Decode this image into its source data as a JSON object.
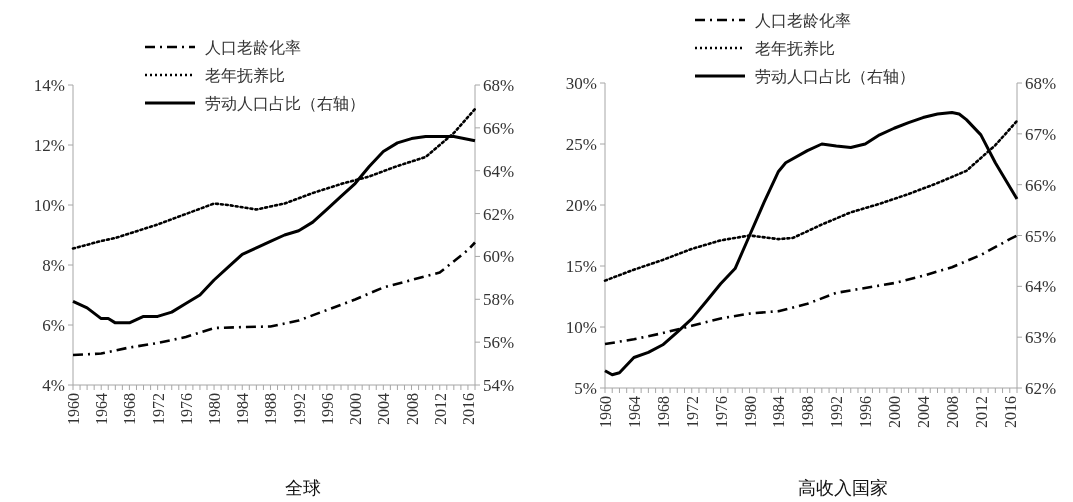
{
  "chart_data": [
    {
      "type": "line",
      "title": "全球",
      "legend": "top",
      "grid": false,
      "marker": "none",
      "xlim": [
        1960,
        2017
      ],
      "xticks": [
        {
          "value": 1960,
          "label": "1960"
        },
        {
          "value": 1961,
          "label": null
        },
        {
          "value": 1962,
          "label": null
        },
        {
          "value": 1963,
          "label": null
        },
        {
          "value": 1964,
          "label": "1964"
        },
        {
          "value": 1965,
          "label": null
        },
        {
          "value": 1966,
          "label": null
        },
        {
          "value": 1967,
          "label": null
        },
        {
          "value": 1968,
          "label": "1968"
        },
        {
          "value": 1969,
          "label": null
        },
        {
          "value": 1970,
          "label": null
        },
        {
          "value": 1971,
          "label": null
        },
        {
          "value": 1972,
          "label": "1972"
        },
        {
          "value": 1973,
          "label": null
        },
        {
          "value": 1974,
          "label": null
        },
        {
          "value": 1975,
          "label": null
        },
        {
          "value": 1976,
          "label": "1976"
        },
        {
          "value": 1977,
          "label": null
        },
        {
          "value": 1978,
          "label": null
        },
        {
          "value": 1979,
          "label": null
        },
        {
          "value": 1980,
          "label": "1980"
        },
        {
          "value": 1981,
          "label": null
        },
        {
          "value": 1982,
          "label": null
        },
        {
          "value": 1983,
          "label": null
        },
        {
          "value": 1984,
          "label": "1984"
        },
        {
          "value": 1985,
          "label": null
        },
        {
          "value": 1986,
          "label": null
        },
        {
          "value": 1987,
          "label": null
        },
        {
          "value": 1988,
          "label": "1988"
        },
        {
          "value": 1989,
          "label": null
        },
        {
          "value": 1990,
          "label": null
        },
        {
          "value": 1991,
          "label": null
        },
        {
          "value": 1992,
          "label": "1992"
        },
        {
          "value": 1993,
          "label": null
        },
        {
          "value": 1994,
          "label": null
        },
        {
          "value": 1995,
          "label": null
        },
        {
          "value": 1996,
          "label": "1996"
        },
        {
          "value": 1997,
          "label": null
        },
        {
          "value": 1998,
          "label": null
        },
        {
          "value": 1999,
          "label": null
        },
        {
          "value": 2000,
          "label": "2000"
        },
        {
          "value": 2001,
          "label": null
        },
        {
          "value": 2002,
          "label": null
        },
        {
          "value": 2003,
          "label": null
        },
        {
          "value": 2004,
          "label": "2004"
        },
        {
          "value": 2005,
          "label": null
        },
        {
          "value": 2006,
          "label": null
        },
        {
          "value": 2007,
          "label": null
        },
        {
          "value": 2008,
          "label": "2008"
        },
        {
          "value": 2009,
          "label": null
        },
        {
          "value": 2010,
          "label": null
        },
        {
          "value": 2011,
          "label": null
        },
        {
          "value": 2012,
          "label": "2012"
        },
        {
          "value": 2013,
          "label": null
        },
        {
          "value": 2014,
          "label": null
        },
        {
          "value": 2015,
          "label": null
        },
        {
          "value": 2016,
          "label": "2016"
        },
        {
          "value": 2017,
          "label": null
        }
      ],
      "ylim": [
        4,
        14
      ],
      "yticks": [
        {
          "value": 4,
          "label": "4%"
        },
        {
          "value": 6,
          "label": "6%"
        },
        {
          "value": 8,
          "label": "8%"
        },
        {
          "value": 10,
          "label": "10%"
        },
        {
          "value": 12,
          "label": "12%"
        },
        {
          "value": 14,
          "label": "14%"
        }
      ],
      "y2lim": [
        54,
        68
      ],
      "y2ticks": [
        {
          "value": 54,
          "label": "54%"
        },
        {
          "value": 56,
          "label": "56%"
        },
        {
          "value": 58,
          "label": "58%"
        },
        {
          "value": 60,
          "label": "60%"
        },
        {
          "value": 62,
          "label": "62%"
        },
        {
          "value": 64,
          "label": "64%"
        },
        {
          "value": 66,
          "label": "66%"
        },
        {
          "value": 68,
          "label": "68%"
        }
      ],
      "series": [
        {
          "name": "人口老龄化率",
          "color": "#000000",
          "line_style": "dashdot",
          "x": [
            1960,
            1964,
            1968,
            1972,
            1976,
            1980,
            1984,
            1988,
            1992,
            1996,
            2000,
            2004,
            2008,
            2012,
            2016,
            2017
          ],
          "values": [
            5.0,
            5.05,
            5.25,
            5.4,
            5.6,
            5.9,
            5.93,
            5.95,
            6.15,
            6.5,
            6.85,
            7.25,
            7.5,
            7.75,
            8.5,
            8.75
          ]
        },
        {
          "name": "老年抚养比",
          "color": "#000000",
          "line_style": "dotted",
          "x": [
            1960,
            1964,
            1966,
            1972,
            1976,
            1980,
            1982,
            1986,
            1990,
            1994,
            1998,
            2002,
            2006,
            2010,
            2014,
            2017
          ],
          "values": [
            8.55,
            8.8,
            8.9,
            9.35,
            9.7,
            10.05,
            10.0,
            9.85,
            10.05,
            10.4,
            10.7,
            10.95,
            11.3,
            11.6,
            12.4,
            13.2
          ]
        },
        {
          "name": "劳动人口占比（右轴）",
          "color": "#000000",
          "line_style": "solid",
          "axis": "y2",
          "x": [
            1960,
            1962,
            1964,
            1965,
            1966,
            1968,
            1970,
            1972,
            1974,
            1976,
            1978,
            1980,
            1982,
            1984,
            1986,
            1988,
            1990,
            1992,
            1994,
            1996,
            1998,
            2000,
            2002,
            2004,
            2006,
            2008,
            2010,
            2012,
            2014,
            2017
          ],
          "values": [
            57.9,
            57.6,
            57.1,
            57.1,
            56.9,
            56.9,
            57.2,
            57.2,
            57.4,
            57.8,
            58.2,
            58.9,
            59.5,
            60.1,
            60.4,
            60.7,
            61.0,
            61.2,
            61.6,
            62.2,
            62.8,
            63.4,
            64.2,
            64.9,
            65.3,
            65.5,
            65.6,
            65.6,
            65.6,
            65.4
          ]
        }
      ]
    },
    {
      "type": "line",
      "title": "高收入国家",
      "legend": "top",
      "grid": false,
      "marker": "none",
      "xlim": [
        1960,
        2017
      ],
      "xticks": [
        {
          "value": 1960,
          "label": "1960"
        },
        {
          "value": 1961,
          "label": null
        },
        {
          "value": 1962,
          "label": null
        },
        {
          "value": 1963,
          "label": null
        },
        {
          "value": 1964,
          "label": "1964"
        },
        {
          "value": 1965,
          "label": null
        },
        {
          "value": 1966,
          "label": null
        },
        {
          "value": 1967,
          "label": null
        },
        {
          "value": 1968,
          "label": "1968"
        },
        {
          "value": 1969,
          "label": null
        },
        {
          "value": 1970,
          "label": null
        },
        {
          "value": 1971,
          "label": null
        },
        {
          "value": 1972,
          "label": "1972"
        },
        {
          "value": 1973,
          "label": null
        },
        {
          "value": 1974,
          "label": null
        },
        {
          "value": 1975,
          "label": null
        },
        {
          "value": 1976,
          "label": "1976"
        },
        {
          "value": 1977,
          "label": null
        },
        {
          "value": 1978,
          "label": null
        },
        {
          "value": 1979,
          "label": null
        },
        {
          "value": 1980,
          "label": "1980"
        },
        {
          "value": 1981,
          "label": null
        },
        {
          "value": 1982,
          "label": null
        },
        {
          "value": 1983,
          "label": null
        },
        {
          "value": 1984,
          "label": "1984"
        },
        {
          "value": 1985,
          "label": null
        },
        {
          "value": 1986,
          "label": null
        },
        {
          "value": 1987,
          "label": null
        },
        {
          "value": 1988,
          "label": "1988"
        },
        {
          "value": 1989,
          "label": null
        },
        {
          "value": 1990,
          "label": null
        },
        {
          "value": 1991,
          "label": null
        },
        {
          "value": 1992,
          "label": "1992"
        },
        {
          "value": 1993,
          "label": null
        },
        {
          "value": 1994,
          "label": null
        },
        {
          "value": 1995,
          "label": null
        },
        {
          "value": 1996,
          "label": "1996"
        },
        {
          "value": 1997,
          "label": null
        },
        {
          "value": 1998,
          "label": null
        },
        {
          "value": 1999,
          "label": null
        },
        {
          "value": 2000,
          "label": "2000"
        },
        {
          "value": 2001,
          "label": null
        },
        {
          "value": 2002,
          "label": null
        },
        {
          "value": 2003,
          "label": null
        },
        {
          "value": 2004,
          "label": "2004"
        },
        {
          "value": 2005,
          "label": null
        },
        {
          "value": 2006,
          "label": null
        },
        {
          "value": 2007,
          "label": null
        },
        {
          "value": 2008,
          "label": "2008"
        },
        {
          "value": 2009,
          "label": null
        },
        {
          "value": 2010,
          "label": null
        },
        {
          "value": 2011,
          "label": null
        },
        {
          "value": 2012,
          "label": "2012"
        },
        {
          "value": 2013,
          "label": null
        },
        {
          "value": 2014,
          "label": null
        },
        {
          "value": 2015,
          "label": null
        },
        {
          "value": 2016,
          "label": "2016"
        },
        {
          "value": 2017,
          "label": null
        }
      ],
      "ylim": [
        5,
        30
      ],
      "yticks": [
        {
          "value": 5,
          "label": "5%"
        },
        {
          "value": 10,
          "label": "10%"
        },
        {
          "value": 15,
          "label": "15%"
        },
        {
          "value": 20,
          "label": "20%"
        },
        {
          "value": 25,
          "label": "25%"
        },
        {
          "value": 30,
          "label": "30%"
        }
      ],
      "y2lim": [
        62,
        68
      ],
      "y2ticks": [
        {
          "value": 62,
          "label": "62%"
        },
        {
          "value": 63,
          "label": "63%"
        },
        {
          "value": 64,
          "label": "64%"
        },
        {
          "value": 65,
          "label": "65%"
        },
        {
          "value": 66,
          "label": "66%"
        },
        {
          "value": 67,
          "label": "67%"
        },
        {
          "value": 68,
          "label": "68%"
        }
      ],
      "series": [
        {
          "name": "人口老龄化率",
          "color": "#000000",
          "line_style": "dashdot",
          "x": [
            1960,
            1964,
            1968,
            1972,
            1976,
            1980,
            1984,
            1988,
            1992,
            1996,
            2000,
            2004,
            2008,
            2012,
            2016,
            2017
          ],
          "values": [
            8.6,
            9.0,
            9.5,
            10.1,
            10.7,
            11.1,
            11.3,
            11.9,
            12.8,
            13.2,
            13.6,
            14.2,
            14.9,
            15.9,
            17.2,
            17.5
          ]
        },
        {
          "name": "老年抚养比",
          "color": "#000000",
          "line_style": "dotted",
          "x": [
            1960,
            1964,
            1968,
            1972,
            1976,
            1980,
            1984,
            1986,
            1990,
            1994,
            1998,
            2002,
            2006,
            2010,
            2014,
            2017
          ],
          "values": [
            13.8,
            14.7,
            15.5,
            16.4,
            17.1,
            17.5,
            17.2,
            17.3,
            18.4,
            19.4,
            20.1,
            20.9,
            21.8,
            22.8,
            24.9,
            26.9
          ]
        },
        {
          "name": "劳动人口占比（右轴）",
          "color": "#000000",
          "line_style": "solid",
          "axis": "y2",
          "x": [
            1960,
            1961,
            1962,
            1964,
            1966,
            1968,
            1970,
            1972,
            1974,
            1976,
            1978,
            1980,
            1982,
            1984,
            1985,
            1988,
            1990,
            1992,
            1994,
            1996,
            1998,
            2000,
            2002,
            2004,
            2006,
            2008,
            2009,
            2010,
            2012,
            2014,
            2017
          ],
          "values": [
            62.34,
            62.26,
            62.3,
            62.6,
            62.7,
            62.85,
            63.1,
            63.36,
            63.7,
            64.05,
            64.35,
            65.0,
            65.65,
            66.26,
            66.43,
            66.67,
            66.8,
            66.76,
            66.73,
            66.8,
            66.98,
            67.11,
            67.22,
            67.32,
            67.39,
            67.42,
            67.39,
            67.28,
            66.98,
            66.43,
            65.72
          ]
        }
      ]
    }
  ]
}
